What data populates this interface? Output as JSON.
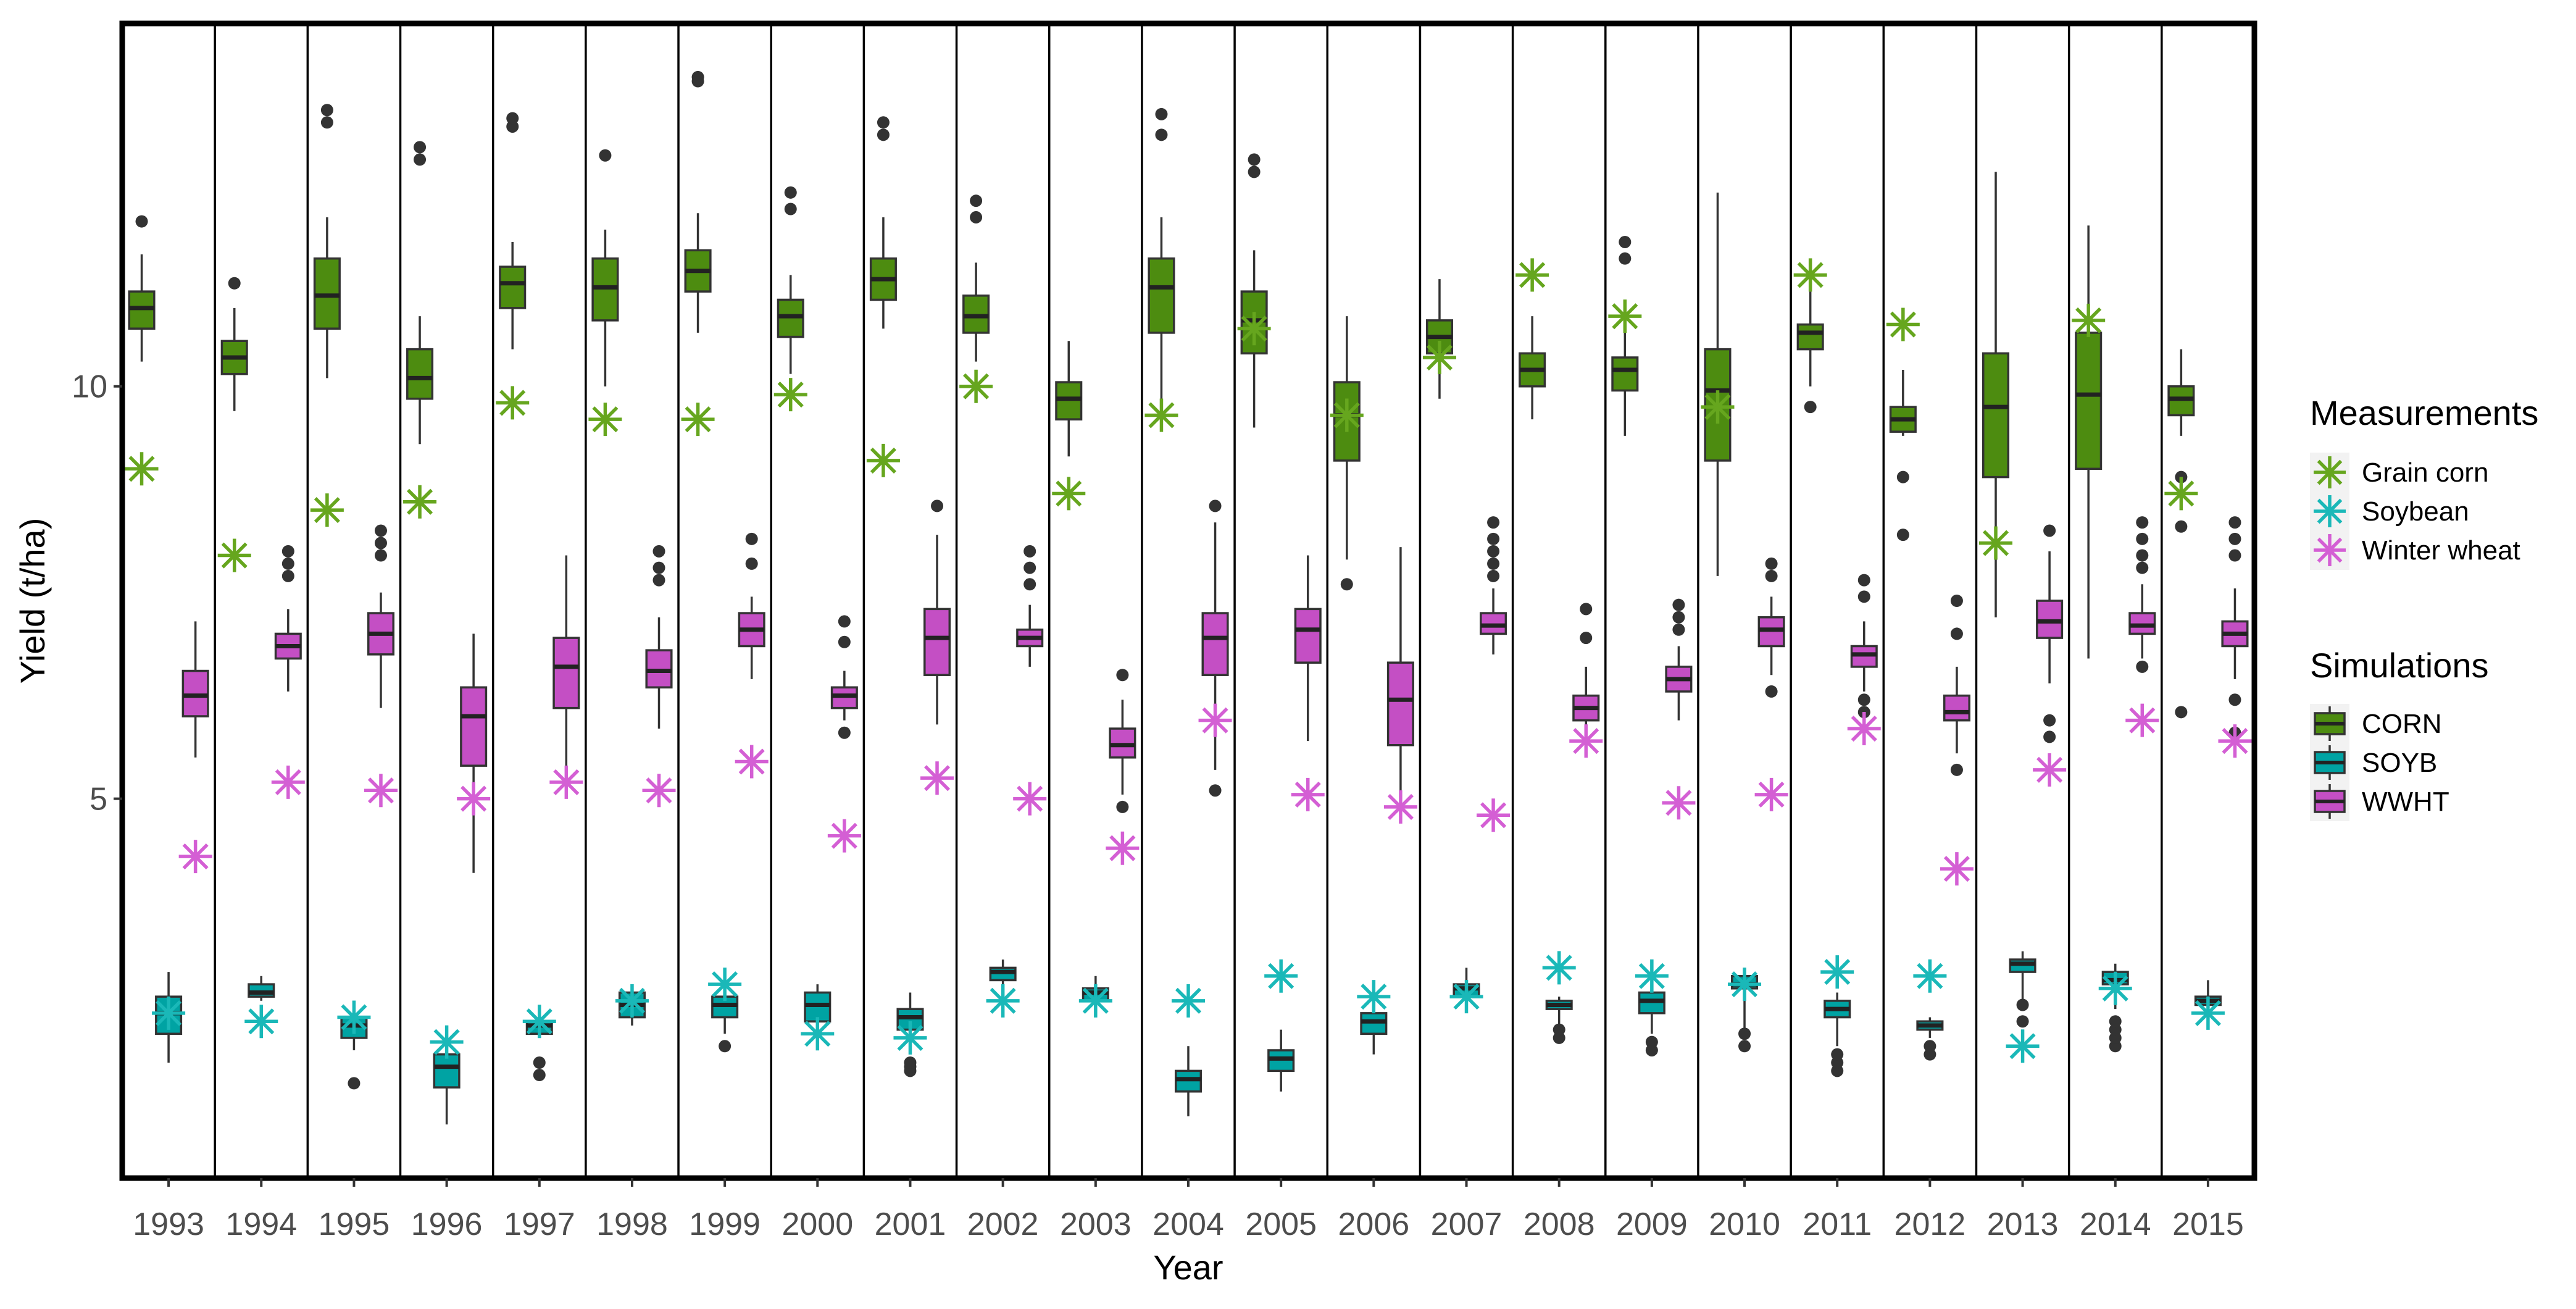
{
  "chart_data": {
    "type": "boxplot",
    "xlabel": "Year",
    "ylabel": "Yield (t/ha)",
    "ylim": [
      0.4,
      14.4
    ],
    "yticks": [
      5,
      10
    ],
    "categories": [
      "1993",
      "1994",
      "1995",
      "1996",
      "1997",
      "1998",
      "1999",
      "2000",
      "2001",
      "2002",
      "2003",
      "2004",
      "2005",
      "2006",
      "2007",
      "2008",
      "2009",
      "2010",
      "2011",
      "2012",
      "2013",
      "2014",
      "2015"
    ],
    "legend": {
      "measurements_title": "Measurements",
      "measurements": [
        {
          "key": "corn",
          "label": "Grain corn",
          "color": "#66a61e"
        },
        {
          "key": "soy",
          "label": "Soybean",
          "color": "#1ab8b8"
        },
        {
          "key": "wheat",
          "label": "Winter wheat",
          "color": "#d45fd4"
        }
      ],
      "simulations_title": "Simulations",
      "simulations": [
        {
          "key": "corn",
          "label": "CORN",
          "color": "#4d8c10"
        },
        {
          "key": "soy",
          "label": "SOYB",
          "color": "#00a3a3"
        },
        {
          "key": "wheat",
          "label": "WWHT",
          "color": "#c44fc4"
        }
      ]
    },
    "simulations": {
      "corn": [
        {
          "lw": 10.3,
          "q1": 10.7,
          "med": 10.95,
          "q3": 11.15,
          "uw": 11.6,
          "out": [
            12.0
          ]
        },
        {
          "lw": 9.7,
          "q1": 10.15,
          "med": 10.35,
          "q3": 10.55,
          "uw": 10.95,
          "out": [
            11.25
          ]
        },
        {
          "lw": 10.1,
          "q1": 10.7,
          "med": 11.1,
          "q3": 11.55,
          "uw": 12.05,
          "out": [
            13.2,
            13.35
          ]
        },
        {
          "lw": 9.3,
          "q1": 9.85,
          "med": 10.1,
          "q3": 10.45,
          "uw": 10.85,
          "out": [
            12.75,
            12.9
          ]
        },
        {
          "lw": 10.45,
          "q1": 10.95,
          "med": 11.25,
          "q3": 11.45,
          "uw": 11.75,
          "out": [
            13.15,
            13.25
          ]
        },
        {
          "lw": 10.0,
          "q1": 10.8,
          "med": 11.2,
          "q3": 11.55,
          "uw": 11.9,
          "out": [
            12.8
          ]
        },
        {
          "lw": 10.65,
          "q1": 11.15,
          "med": 11.4,
          "q3": 11.65,
          "uw": 12.1,
          "out": [
            13.7,
            13.75
          ]
        },
        {
          "lw": 10.15,
          "q1": 10.6,
          "med": 10.85,
          "q3": 11.05,
          "uw": 11.35,
          "out": [
            12.15,
            12.35
          ]
        },
        {
          "lw": 10.7,
          "q1": 11.05,
          "med": 11.3,
          "q3": 11.55,
          "uw": 12.05,
          "out": [
            13.05,
            13.2
          ]
        },
        {
          "lw": 10.3,
          "q1": 10.65,
          "med": 10.85,
          "q3": 11.1,
          "uw": 11.5,
          "out": [
            12.05,
            12.25
          ]
        },
        {
          "lw": 9.15,
          "q1": 9.6,
          "med": 9.85,
          "q3": 10.05,
          "uw": 10.55,
          "out": []
        },
        {
          "lw": 9.6,
          "q1": 10.65,
          "med": 11.2,
          "q3": 11.55,
          "uw": 12.05,
          "out": [
            13.05,
            13.3
          ]
        },
        {
          "lw": 9.5,
          "q1": 10.4,
          "med": 10.8,
          "q3": 11.15,
          "uw": 11.65,
          "out": [
            12.6,
            12.75
          ]
        },
        {
          "lw": 7.9,
          "q1": 9.1,
          "med": 9.65,
          "q3": 10.05,
          "uw": 10.85,
          "out": [
            7.6
          ]
        },
        {
          "lw": 9.85,
          "q1": 10.4,
          "med": 10.6,
          "q3": 10.8,
          "uw": 11.3,
          "out": []
        },
        {
          "lw": 9.6,
          "q1": 10.0,
          "med": 10.2,
          "q3": 10.4,
          "uw": 10.85,
          "out": []
        },
        {
          "lw": 9.4,
          "q1": 9.95,
          "med": 10.2,
          "q3": 10.35,
          "uw": 10.85,
          "out": [
            11.55,
            11.75
          ]
        },
        {
          "lw": 7.7,
          "q1": 9.1,
          "med": 9.95,
          "q3": 10.45,
          "uw": 12.35,
          "out": []
        },
        {
          "lw": 10.0,
          "q1": 10.45,
          "med": 10.65,
          "q3": 10.75,
          "uw": 11.15,
          "out": [
            9.75
          ]
        },
        {
          "lw": 9.4,
          "q1": 9.45,
          "med": 9.6,
          "q3": 9.75,
          "uw": 10.2,
          "out": [
            8.9,
            8.2
          ]
        },
        {
          "lw": 7.2,
          "q1": 8.9,
          "med": 9.75,
          "q3": 10.4,
          "uw": 12.6,
          "out": []
        },
        {
          "lw": 6.7,
          "q1": 9.0,
          "med": 9.9,
          "q3": 10.65,
          "uw": 11.95,
          "out": []
        },
        {
          "lw": 9.4,
          "q1": 9.65,
          "med": 9.85,
          "q3": 10.0,
          "uw": 10.45,
          "out": [
            8.9,
            8.3,
            6.05
          ]
        }
      ],
      "soy": [
        {
          "lw": 1.8,
          "q1": 2.15,
          "med": 2.4,
          "q3": 2.6,
          "uw": 2.9,
          "out": []
        },
        {
          "lw": 2.55,
          "q1": 2.6,
          "med": 2.65,
          "q3": 2.75,
          "uw": 2.85,
          "out": []
        },
        {
          "lw": 1.95,
          "q1": 2.1,
          "med": 2.25,
          "q3": 2.35,
          "uw": 2.5,
          "out": [
            1.55
          ]
        },
        {
          "lw": 1.05,
          "q1": 1.5,
          "med": 1.75,
          "q3": 1.9,
          "uw": 2.05,
          "out": []
        },
        {
          "lw": 2.1,
          "q1": 2.15,
          "med": 2.25,
          "q3": 2.3,
          "uw": 2.4,
          "out": [
            1.65,
            1.8
          ]
        },
        {
          "lw": 2.25,
          "q1": 2.35,
          "med": 2.5,
          "q3": 2.65,
          "uw": 2.75,
          "out": []
        },
        {
          "lw": 2.15,
          "q1": 2.35,
          "med": 2.5,
          "q3": 2.6,
          "uw": 2.8,
          "out": [
            2.0
          ]
        },
        {
          "lw": 2.2,
          "q1": 2.3,
          "med": 2.5,
          "q3": 2.65,
          "uw": 2.75,
          "out": []
        },
        {
          "lw": 2.0,
          "q1": 2.2,
          "med": 2.35,
          "q3": 2.45,
          "uw": 2.65,
          "out": [
            1.7,
            1.75,
            1.8
          ]
        },
        {
          "lw": 2.75,
          "q1": 2.8,
          "med": 2.9,
          "q3": 2.95,
          "uw": 3.05,
          "out": []
        },
        {
          "lw": 2.5,
          "q1": 2.55,
          "med": 2.65,
          "q3": 2.7,
          "uw": 2.85,
          "out": []
        },
        {
          "lw": 1.15,
          "q1": 1.45,
          "med": 1.6,
          "q3": 1.7,
          "uw": 2.0,
          "out": []
        },
        {
          "lw": 1.45,
          "q1": 1.7,
          "med": 1.85,
          "q3": 1.95,
          "uw": 2.2,
          "out": []
        },
        {
          "lw": 1.9,
          "q1": 2.15,
          "med": 2.3,
          "q3": 2.4,
          "uw": 2.5,
          "out": []
        },
        {
          "lw": 2.45,
          "q1": 2.6,
          "med": 2.7,
          "q3": 2.75,
          "uw": 2.95,
          "out": []
        },
        {
          "lw": 2.2,
          "q1": 2.45,
          "med": 2.5,
          "q3": 2.55,
          "uw": 2.6,
          "out": [
            2.1,
            2.2
          ]
        },
        {
          "lw": 2.15,
          "q1": 2.4,
          "med": 2.55,
          "q3": 2.65,
          "uw": 2.75,
          "out": [
            1.95,
            2.05
          ]
        },
        {
          "lw": 2.15,
          "q1": 2.7,
          "med": 2.75,
          "q3": 2.85,
          "uw": 2.95,
          "out": [
            2.0,
            2.15
          ]
        },
        {
          "lw": 2.0,
          "q1": 2.35,
          "med": 2.45,
          "q3": 2.55,
          "uw": 2.65,
          "out": [
            1.7,
            1.8,
            1.9
          ]
        },
        {
          "lw": 2.1,
          "q1": 2.2,
          "med": 2.25,
          "q3": 2.3,
          "uw": 2.35,
          "out": [
            1.9,
            2.0
          ]
        },
        {
          "lw": 2.55,
          "q1": 2.9,
          "med": 3.0,
          "q3": 3.05,
          "uw": 3.15,
          "out": [
            2.3,
            2.5
          ]
        },
        {
          "lw": 2.45,
          "q1": 2.75,
          "med": 2.8,
          "q3": 2.9,
          "uw": 3.0,
          "out": [
            2.0,
            2.1,
            2.2,
            2.3
          ]
        },
        {
          "lw": 2.45,
          "q1": 2.5,
          "med": 2.55,
          "q3": 2.6,
          "uw": 2.8,
          "out": []
        }
      ],
      "wheat": [
        {
          "lw": 5.5,
          "q1": 6.0,
          "med": 6.25,
          "q3": 6.55,
          "uw": 7.15,
          "out": []
        },
        {
          "lw": 6.3,
          "q1": 6.7,
          "med": 6.85,
          "q3": 7.0,
          "uw": 7.3,
          "out": [
            7.7,
            7.85,
            8.0
          ]
        },
        {
          "lw": 6.1,
          "q1": 6.75,
          "med": 7.0,
          "q3": 7.25,
          "uw": 7.5,
          "out": [
            7.95,
            8.1,
            8.25
          ]
        },
        {
          "lw": 4.1,
          "q1": 5.4,
          "med": 6.0,
          "q3": 6.35,
          "uw": 7.0,
          "out": []
        },
        {
          "lw": 5.3,
          "q1": 6.1,
          "med": 6.6,
          "q3": 6.95,
          "uw": 7.95,
          "out": []
        },
        {
          "lw": 5.85,
          "q1": 6.35,
          "med": 6.55,
          "q3": 6.8,
          "uw": 7.2,
          "out": [
            7.65,
            7.8,
            8.0
          ]
        },
        {
          "lw": 6.45,
          "q1": 6.85,
          "med": 7.05,
          "q3": 7.25,
          "uw": 7.45,
          "out": [
            7.85,
            8.15
          ]
        },
        {
          "lw": 5.95,
          "q1": 6.1,
          "med": 6.25,
          "q3": 6.35,
          "uw": 6.55,
          "out": [
            5.8,
            6.9,
            7.15
          ]
        },
        {
          "lw": 5.9,
          "q1": 6.5,
          "med": 6.95,
          "q3": 7.3,
          "uw": 8.2,
          "out": [
            8.55
          ]
        },
        {
          "lw": 6.6,
          "q1": 6.85,
          "med": 6.95,
          "q3": 7.05,
          "uw": 7.35,
          "out": [
            7.6,
            7.8,
            8.0
          ]
        },
        {
          "lw": 5.05,
          "q1": 5.5,
          "med": 5.65,
          "q3": 5.85,
          "uw": 6.2,
          "out": [
            4.9,
            6.5
          ]
        },
        {
          "lw": 5.35,
          "q1": 6.5,
          "med": 6.95,
          "q3": 7.25,
          "uw": 8.35,
          "out": [
            5.1,
            8.55
          ]
        },
        {
          "lw": 5.7,
          "q1": 6.65,
          "med": 7.05,
          "q3": 7.3,
          "uw": 7.95,
          "out": []
        },
        {
          "lw": 5.1,
          "q1": 5.65,
          "med": 6.2,
          "q3": 6.65,
          "uw": 8.05,
          "out": []
        },
        {
          "lw": 6.75,
          "q1": 7.0,
          "med": 7.1,
          "q3": 7.25,
          "uw": 7.55,
          "out": [
            7.7,
            7.85,
            8.0,
            8.15,
            8.35
          ]
        },
        {
          "lw": 5.6,
          "q1": 5.95,
          "med": 6.1,
          "q3": 6.25,
          "uw": 6.6,
          "out": [
            6.95,
            7.3
          ]
        },
        {
          "lw": 5.95,
          "q1": 6.3,
          "med": 6.45,
          "q3": 6.6,
          "uw": 6.85,
          "out": [
            7.05,
            7.2,
            7.35
          ]
        },
        {
          "lw": 6.5,
          "q1": 6.85,
          "med": 7.05,
          "q3": 7.2,
          "uw": 7.45,
          "out": [
            6.3,
            7.7,
            7.85
          ]
        },
        {
          "lw": 6.3,
          "q1": 6.6,
          "med": 6.75,
          "q3": 6.85,
          "uw": 7.15,
          "out": [
            6.05,
            6.2,
            7.45,
            7.65
          ]
        },
        {
          "lw": 5.55,
          "q1": 5.95,
          "med": 6.05,
          "q3": 6.25,
          "uw": 6.6,
          "out": [
            5.35,
            7.0,
            7.4
          ]
        },
        {
          "lw": 6.4,
          "q1": 6.95,
          "med": 7.15,
          "q3": 7.4,
          "uw": 8.0,
          "out": [
            5.75,
            5.95,
            8.25
          ]
        },
        {
          "lw": 6.7,
          "q1": 7.0,
          "med": 7.1,
          "q3": 7.25,
          "uw": 7.6,
          "out": [
            6.6,
            7.8,
            7.95,
            8.15,
            8.35
          ]
        },
        {
          "lw": 6.45,
          "q1": 6.85,
          "med": 7.0,
          "q3": 7.15,
          "uw": 7.55,
          "out": [
            6.2,
            5.8,
            7.95,
            8.15,
            8.35
          ]
        }
      ]
    },
    "measurements": {
      "corn": [
        9.0,
        7.95,
        8.5,
        8.6,
        9.8,
        9.6,
        9.6,
        9.9,
        9.1,
        10.0,
        8.7,
        9.65,
        10.7,
        9.65,
        10.35,
        11.35,
        10.85,
        9.75,
        11.35,
        10.75,
        8.1,
        10.8,
        8.7
      ],
      "soy": [
        2.4,
        2.3,
        2.35,
        2.05,
        2.3,
        2.55,
        2.75,
        2.15,
        2.1,
        2.55,
        2.55,
        2.55,
        2.85,
        2.6,
        2.6,
        2.95,
        2.85,
        2.75,
        2.9,
        2.85,
        2.0,
        2.7,
        2.4
      ],
      "wheat": [
        4.3,
        5.2,
        5.1,
        5.0,
        5.2,
        5.1,
        5.45,
        4.55,
        5.25,
        5.0,
        4.4,
        5.95,
        5.05,
        4.9,
        4.8,
        5.7,
        4.95,
        5.05,
        5.85,
        4.15,
        5.35,
        5.95,
        5.7
      ]
    }
  }
}
